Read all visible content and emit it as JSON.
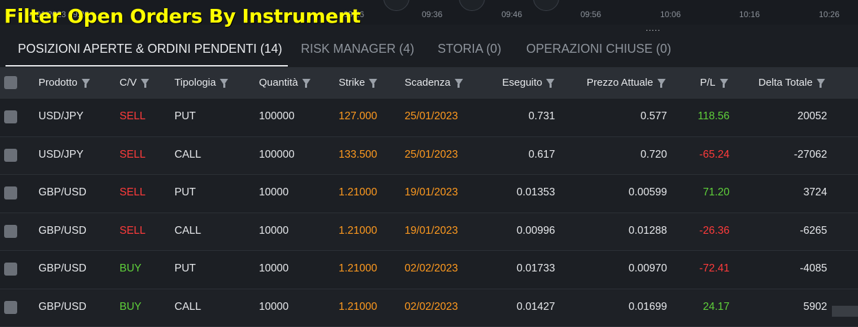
{
  "overlay_title": "Filter Open Orders By Instrument",
  "timeline": {
    "ghost_left": "24/01/2023 09:26",
    "ticks": [
      "09:26",
      "09:36",
      "09:46",
      "09:56",
      "10:06",
      "10:16",
      "10:26"
    ]
  },
  "tabs": [
    {
      "label": "POSIZIONI APERTE & ORDINI PENDENTI (14)",
      "active": true
    },
    {
      "label": "RISK MANAGER (4)",
      "active": false
    },
    {
      "label": "STORIA (0)",
      "active": false
    },
    {
      "label": "OPERAZIONI CHIUSE (0)",
      "active": false
    }
  ],
  "columns": [
    "Prodotto",
    "C/V",
    "Tipologia",
    "Quantità",
    "Strike",
    "Scadenza",
    "Eseguito",
    "Prezzo Attuale",
    "P/L",
    "Delta Totale"
  ],
  "more_dots": ".....",
  "colors": {
    "sell": "#ff3b3b",
    "buy": "#5fd03a",
    "highlight": "#ff9a1f",
    "title": "#ffff00"
  },
  "rows": [
    {
      "product": "USD/JPY",
      "side": "SELL",
      "type": "PUT",
      "qty": "100000",
      "strike": "127.000",
      "expiry": "25/01/2023",
      "filled": "0.731",
      "price": "0.577",
      "pl": "118.56",
      "delta": "20052"
    },
    {
      "product": "USD/JPY",
      "side": "SELL",
      "type": "CALL",
      "qty": "100000",
      "strike": "133.500",
      "expiry": "25/01/2023",
      "filled": "0.617",
      "price": "0.720",
      "pl": "-65.24",
      "delta": "-27062"
    },
    {
      "product": "GBP/USD",
      "side": "SELL",
      "type": "PUT",
      "qty": "10000",
      "strike": "1.21000",
      "expiry": "19/01/2023",
      "filled": "0.01353",
      "price": "0.00599",
      "pl": "71.20",
      "delta": "3724"
    },
    {
      "product": "GBP/USD",
      "side": "SELL",
      "type": "CALL",
      "qty": "10000",
      "strike": "1.21000",
      "expiry": "19/01/2023",
      "filled": "0.00996",
      "price": "0.01288",
      "pl": "-26.36",
      "delta": "-6265"
    },
    {
      "product": "GBP/USD",
      "side": "BUY",
      "type": "PUT",
      "qty": "10000",
      "strike": "1.21000",
      "expiry": "02/02/2023",
      "filled": "0.01733",
      "price": "0.00970",
      "pl": "-72.41",
      "delta": "-4085"
    },
    {
      "product": "GBP/USD",
      "side": "BUY",
      "type": "CALL",
      "qty": "10000",
      "strike": "1.21000",
      "expiry": "02/02/2023",
      "filled": "0.01427",
      "price": "0.01699",
      "pl": "24.17",
      "delta": "5902"
    }
  ]
}
